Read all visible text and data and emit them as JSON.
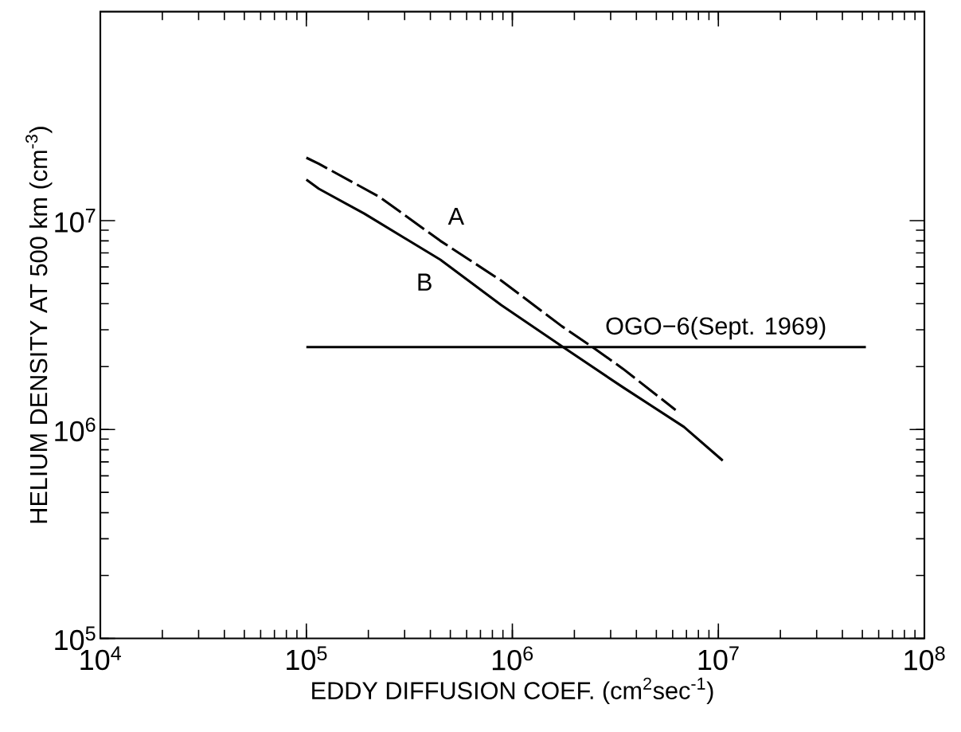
{
  "chart_data": {
    "type": "line",
    "xlabel": "EDDY DIFFUSION COEF. (cm$^{2}$sec$^{-1}$)",
    "ylabel": "HELIUM DENSITY AT 500 km  (cm$^{-3}$)",
    "log": "xy",
    "xlim": [
      10000,
      100000000
    ],
    "ylim": [
      100000,
      100000000
    ],
    "xticks": [
      {
        "value": 10000,
        "label": "10$^{4}$"
      },
      {
        "value": 100000,
        "label": "10$^{5}$"
      },
      {
        "value": 1000000,
        "label": "10$^{6}$"
      },
      {
        "value": 10000000,
        "label": "10$^{7}$"
      },
      {
        "value": 100000000,
        "label": "10$^{8}$"
      }
    ],
    "yticks": [
      {
        "value": 100000,
        "label": "10$^{5}$"
      },
      {
        "value": 1000000,
        "label": "10$^{6}$"
      },
      {
        "value": 10000000,
        "label": "10$^{7}$"
      }
    ],
    "series": [
      {
        "name": "A",
        "color": "#000000",
        "line_style": "dashed",
        "x": [
          100000,
          115000,
          226000,
          447000,
          883000,
          1740000,
          2450000,
          3450000,
          6200000
        ],
        "values": [
          20000000,
          18700000,
          13000000,
          8000000,
          5160000,
          3120000,
          2480000,
          1950000,
          1240000
        ]
      },
      {
        "name": "B",
        "color": "#000000",
        "line_style": "solid",
        "x": [
          100000,
          115000,
          191000,
          447000,
          883000,
          1740000,
          3450000,
          6800000,
          10500000
        ],
        "values": [
          15700000,
          14200000,
          10800000,
          6500000,
          3940000,
          2500000,
          1590000,
          1030000,
          710000
        ]
      },
      {
        "name": "OGO−6(Sept. 1969)",
        "color": "#000000",
        "line_style": "solid",
        "x": [
          100000,
          52000000
        ],
        "values": [
          2480000,
          2480000
        ]
      }
    ],
    "grid": false,
    "marker": "none"
  }
}
